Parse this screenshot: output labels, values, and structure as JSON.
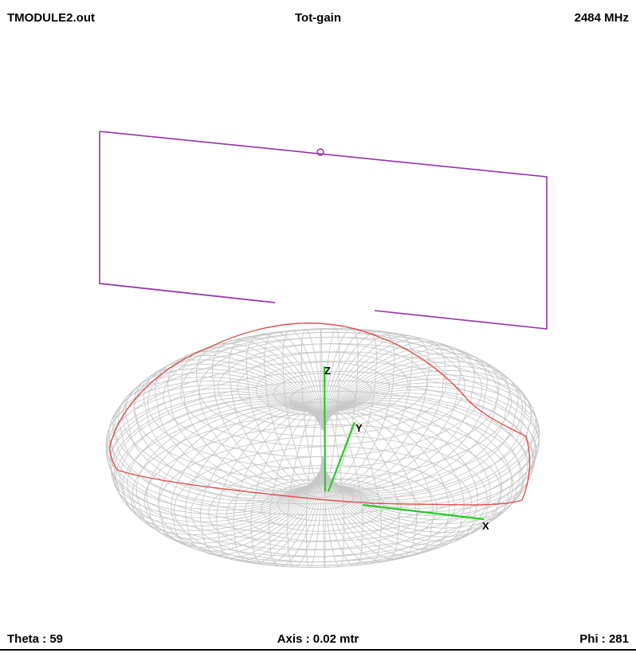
{
  "header": {
    "file_name": "TMODULE2.out",
    "quantity": "Tot-gain",
    "frequency": "2484 MHz"
  },
  "footer": {
    "theta": "Theta : 59",
    "axis": "Axis : 0.02 mtr",
    "phi": "Phi : 281"
  },
  "axes": {
    "x_label": "X",
    "y_label": "Y",
    "z_label": "Z"
  },
  "colors": {
    "mesh": "#c8c8c8",
    "cut_curve": "#e05050",
    "ground_plane": "#9a30b0",
    "axis_lines": "#22cc22",
    "text": "#000000"
  }
}
